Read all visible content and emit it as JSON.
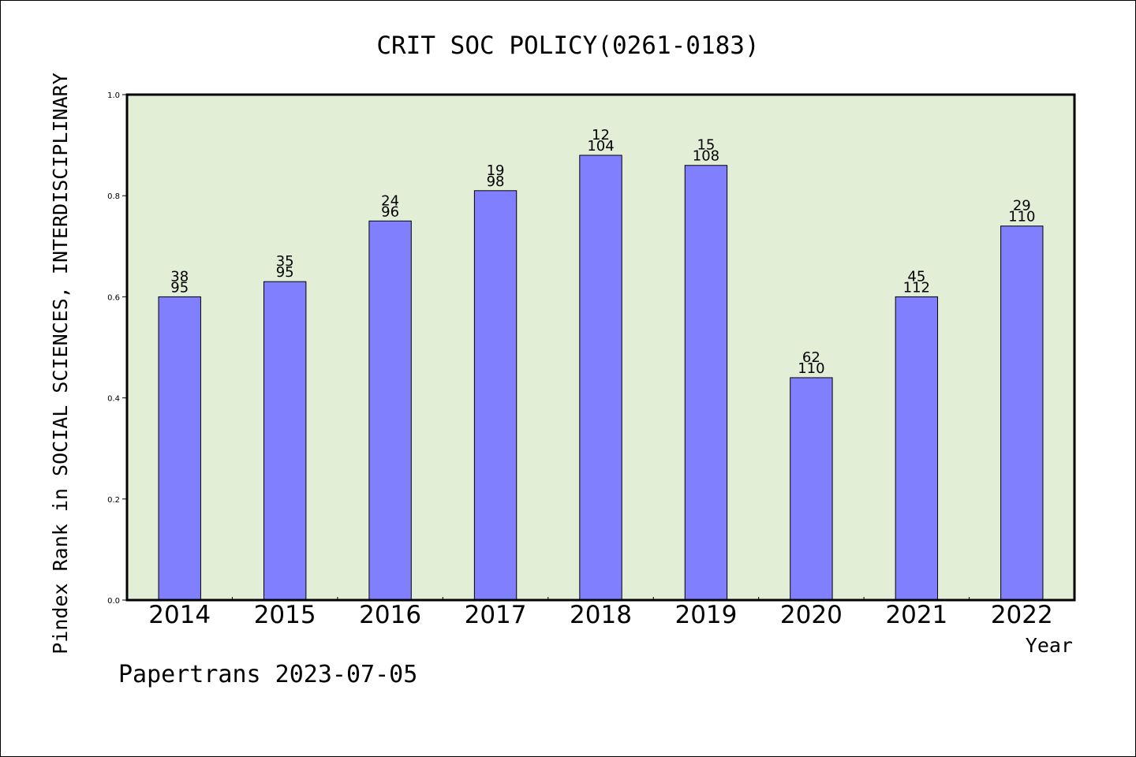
{
  "chart_data": {
    "type": "bar",
    "title": "CRIT SOC POLICY(0261-0183)",
    "xlabel": "Year",
    "ylabel": "Pindex Rank in SOCIAL SCIENCES, INTERDISCIPLINARY",
    "ylim": [
      0,
      1.0
    ],
    "yticks": [
      "0.0",
      "0.2",
      "0.4",
      "0.6",
      "0.8",
      "1.0"
    ],
    "categories": [
      "2014",
      "2015",
      "2016",
      "2017",
      "2018",
      "2019",
      "2020",
      "2021",
      "2022"
    ],
    "values": [
      0.6,
      0.63,
      0.75,
      0.81,
      0.88,
      0.86,
      0.44,
      0.6,
      0.74
    ],
    "rank_labels": [
      "38",
      "35",
      "24",
      "19",
      "12",
      "15",
      "62",
      "45",
      "29"
    ],
    "total_labels": [
      "95",
      "95",
      "96",
      "98",
      "104",
      "108",
      "110",
      "112",
      "110"
    ],
    "grid": false,
    "legend": "none",
    "colors": {
      "bar": "#8080ff",
      "plot_background": "#e2efd6",
      "axis": "#000000"
    }
  },
  "footer": {
    "credit": "Papertrans 2023-07-05"
  }
}
